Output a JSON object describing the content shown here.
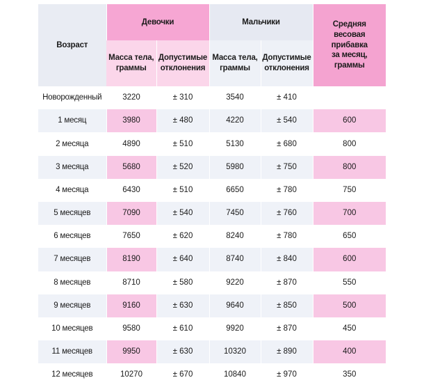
{
  "headers": {
    "age": "Возраст",
    "girls": "Девочки",
    "boys": "Мальчики",
    "avg_gain_line1": "Средняя весовая",
    "avg_gain_line2": "прибавка",
    "avg_gain_line3": "за месяц,",
    "avg_gain_line4": "граммы",
    "girls_mass_line1": "Масса тела,",
    "girls_mass_line2": "граммы",
    "girls_dev_line1": "Допустимые",
    "girls_dev_line2": "отклонения",
    "boys_mass_line1": "Масса тела,",
    "boys_mass_line2": "граммы",
    "boys_dev_line1": "Допустимые",
    "boys_dev_line2": "отклонения"
  },
  "rows": [
    {
      "age": "Новорожденный",
      "girls_mass": "3220",
      "girls_dev": "± 310",
      "boys_mass": "3540",
      "boys_dev": "± 410",
      "avg_gain": ""
    },
    {
      "age": "1 месяц",
      "girls_mass": "3980",
      "girls_dev": "± 480",
      "boys_mass": "4220",
      "boys_dev": "± 540",
      "avg_gain": "600"
    },
    {
      "age": "2 месяца",
      "girls_mass": "4890",
      "girls_dev": "± 510",
      "boys_mass": "5130",
      "boys_dev": "± 680",
      "avg_gain": "800"
    },
    {
      "age": "3 месяца",
      "girls_mass": "5680",
      "girls_dev": "± 520",
      "boys_mass": "5980",
      "boys_dev": "± 750",
      "avg_gain": "800"
    },
    {
      "age": "4 месяца",
      "girls_mass": "6430",
      "girls_dev": "± 510",
      "boys_mass": "6650",
      "boys_dev": "± 780",
      "avg_gain": "750"
    },
    {
      "age": "5 месяцев",
      "girls_mass": "7090",
      "girls_dev": "± 540",
      "boys_mass": "7450",
      "boys_dev": "± 760",
      "avg_gain": "700"
    },
    {
      "age": "6 месяцев",
      "girls_mass": "7650",
      "girls_dev": "± 620",
      "boys_mass": "8240",
      "boys_dev": "± 780",
      "avg_gain": "650"
    },
    {
      "age": "7 месяцев",
      "girls_mass": "8190",
      "girls_dev": "± 640",
      "boys_mass": "8740",
      "boys_dev": "± 840",
      "avg_gain": "600"
    },
    {
      "age": "8 месяцев",
      "girls_mass": "8710",
      "girls_dev": "± 580",
      "boys_mass": "9220",
      "boys_dev": "± 870",
      "avg_gain": "550"
    },
    {
      "age": "9 месяцев",
      "girls_mass": "9160",
      "girls_dev": "± 630",
      "boys_mass": "9640",
      "boys_dev": "± 850",
      "avg_gain": "500"
    },
    {
      "age": "10 месяцев",
      "girls_mass": "9580",
      "girls_dev": "± 610",
      "boys_mass": "9920",
      "boys_dev": "± 870",
      "avg_gain": "450"
    },
    {
      "age": "11 месяцев",
      "girls_mass": "9950",
      "girls_dev": "± 630",
      "boys_mass": "10320",
      "boys_dev": "± 890",
      "avg_gain": "400"
    },
    {
      "age": "12 месяцев",
      "girls_mass": "10270",
      "girls_dev": "± 670",
      "boys_mass": "10840",
      "boys_dev": "± 970",
      "avg_gain": "350"
    }
  ],
  "colors": {
    "pink_header": "#f6a6d3",
    "pink_light": "#fbd6ea",
    "pink_cell": "#f8c7e4",
    "blue_stripe": "#eff2f8"
  }
}
